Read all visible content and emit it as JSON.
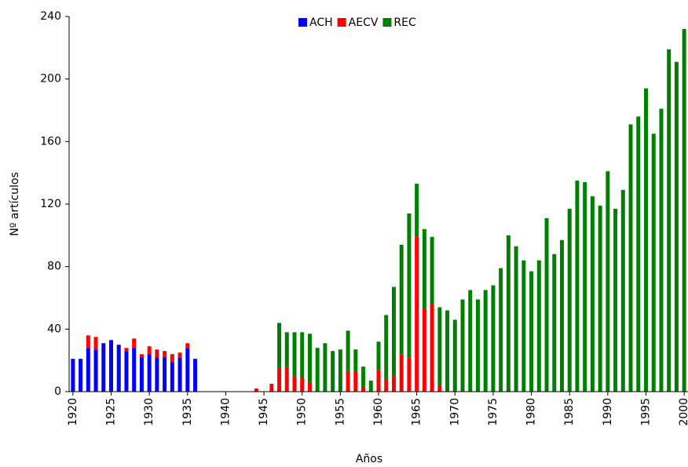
{
  "chart_data": {
    "type": "stacked_bar",
    "x_label": "Años",
    "y_label": "Nº artículos",
    "x": [
      1920,
      1921,
      1922,
      1923,
      1924,
      1925,
      1926,
      1927,
      1928,
      1929,
      1930,
      1931,
      1932,
      1933,
      1934,
      1935,
      1936,
      1937,
      1938,
      1939,
      1940,
      1941,
      1942,
      1943,
      1944,
      1945,
      1946,
      1947,
      1948,
      1949,
      1950,
      1951,
      1952,
      1953,
      1954,
      1955,
      1956,
      1957,
      1958,
      1959,
      1960,
      1961,
      1962,
      1963,
      1964,
      1965,
      1966,
      1967,
      1968,
      1969,
      1970,
      1971,
      1972,
      1973,
      1974,
      1975,
      1976,
      1977,
      1978,
      1979,
      1980,
      1981,
      1982,
      1983,
      1984,
      1985,
      1986,
      1987,
      1988,
      1989,
      1990,
      1991,
      1992,
      1993,
      1994,
      1995,
      1996,
      1997,
      1998,
      1999,
      2000
    ],
    "series": [
      {
        "name": "ACH",
        "color": "#0000ff",
        "values": [
          21,
          21,
          28,
          27,
          31,
          33,
          30,
          26,
          28,
          22,
          24,
          22,
          22,
          19,
          22,
          28,
          21,
          0,
          0,
          0,
          0,
          0,
          0,
          0,
          0,
          0,
          0,
          0,
          0,
          0,
          0,
          0,
          0,
          0,
          0,
          0,
          0,
          0,
          0,
          0,
          0,
          0,
          0,
          0,
          0,
          0,
          0,
          0,
          0,
          0,
          0,
          0,
          0,
          0,
          0,
          0,
          0,
          0,
          0,
          0,
          0,
          0,
          0,
          0,
          0,
          0,
          0,
          0,
          0,
          0,
          0,
          0,
          0,
          0,
          0,
          0,
          0,
          0,
          0,
          0,
          0
        ]
      },
      {
        "name": "AECV",
        "color": "#ff0000",
        "values": [
          0,
          0,
          8,
          8,
          0,
          0,
          0,
          2,
          6,
          2,
          5,
          5,
          4,
          5,
          3,
          3,
          0,
          0,
          0,
          0,
          0,
          0,
          0,
          0,
          2,
          0,
          5,
          15,
          16,
          10,
          9,
          6,
          0,
          0,
          0,
          0,
          13,
          13,
          3,
          0,
          14,
          8,
          10,
          24,
          22,
          99,
          53,
          56,
          4,
          0,
          0,
          0,
          0,
          0,
          0,
          0,
          0,
          0,
          0,
          0,
          0,
          0,
          0,
          0,
          0,
          0,
          0,
          0,
          0,
          0,
          0,
          0,
          0,
          0,
          0,
          0,
          0,
          0,
          0,
          0,
          0
        ]
      },
      {
        "name": "REC",
        "color": "#008000",
        "values": [
          0,
          0,
          0,
          0,
          0,
          0,
          0,
          0,
          0,
          0,
          0,
          0,
          0,
          0,
          0,
          0,
          0,
          0,
          0,
          0,
          0,
          0,
          0,
          0,
          0,
          0,
          0,
          29,
          22,
          28,
          29,
          31,
          28,
          31,
          26,
          27,
          26,
          14,
          13,
          7,
          18,
          41,
          57,
          70,
          92,
          34,
          51,
          43,
          50,
          52,
          46,
          59,
          65,
          59,
          65,
          68,
          79,
          100,
          93,
          84,
          77,
          84,
          111,
          88,
          97,
          117,
          135,
          134,
          125,
          119,
          141,
          117,
          129,
          171,
          176,
          194,
          165,
          181,
          219,
          211,
          232
        ]
      }
    ],
    "xlim": [
      1919.5,
      2000.5
    ],
    "xticks": [
      1920,
      1925,
      1930,
      1935,
      1940,
      1945,
      1950,
      1955,
      1960,
      1965,
      1970,
      1975,
      1980,
      1985,
      1990,
      1995,
      2000
    ],
    "ylim": [
      0,
      240
    ],
    "yticks": [
      0,
      40,
      80,
      120,
      160,
      200,
      240
    ],
    "legend": "top"
  }
}
